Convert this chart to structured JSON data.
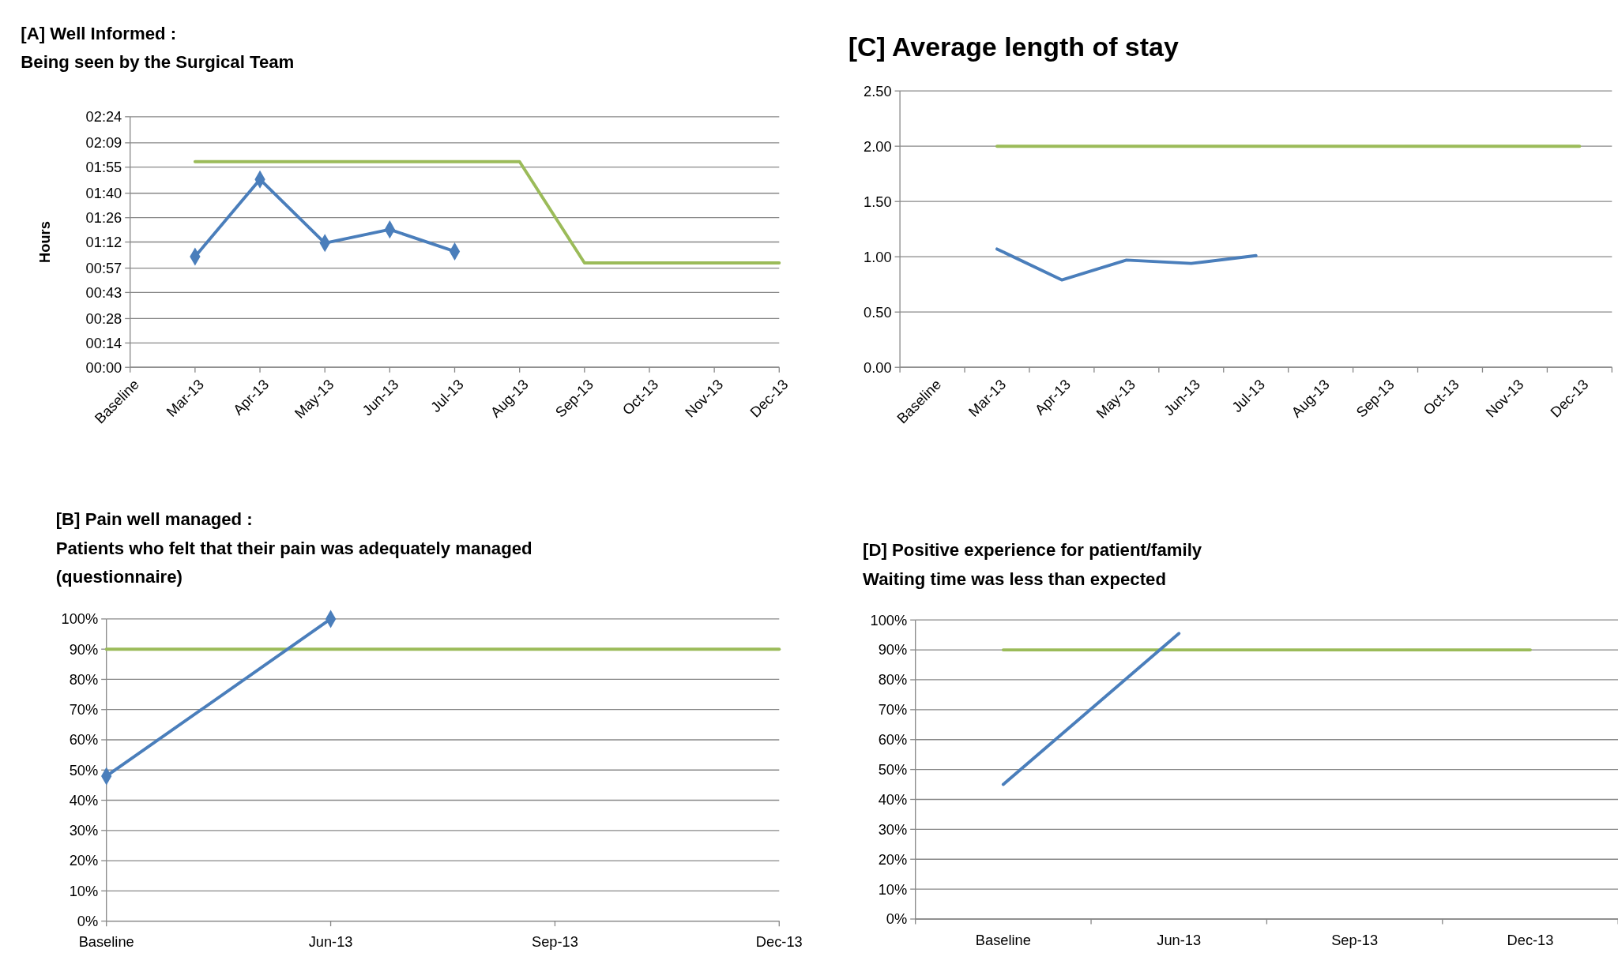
{
  "chart_data": [
    {
      "type": "line",
      "title": "[A] Well Informed :",
      "subtitle": "Being seen by the Surgical Team",
      "ylabel": "Hours",
      "categories": [
        "Baseline",
        "Mar-13",
        "Apr-13",
        "May-13",
        "Jun-13",
        "Jul-13",
        "Aug-13",
        "Sep-13",
        "Oct-13",
        "Nov-13",
        "Dec-13"
      ],
      "ylim": [
        0,
        2.4
      ],
      "yticks": [
        {
          "value": 0,
          "label": "00:00"
        },
        {
          "value": 0.233,
          "label": "00:14"
        },
        {
          "value": 0.467,
          "label": "00:28"
        },
        {
          "value": 0.717,
          "label": "00:43"
        },
        {
          "value": 0.95,
          "label": "00:57"
        },
        {
          "value": 1.2,
          "label": "01:12"
        },
        {
          "value": 1.433,
          "label": "01:26"
        },
        {
          "value": 1.667,
          "label": "01:40"
        },
        {
          "value": 1.917,
          "label": "01:55"
        },
        {
          "value": 2.15,
          "label": "02:09"
        },
        {
          "value": 2.4,
          "label": "02:24"
        }
      ],
      "grid": "y",
      "series": [
        {
          "color": "#9bbb59",
          "marker": "none",
          "values": [
            null,
            1.97,
            1.97,
            1.97,
            1.97,
            1.97,
            1.97,
            1.0,
            1.0,
            1.0,
            1.0
          ]
        },
        {
          "color": "#4a7ebb",
          "marker": "diamond",
          "values": [
            null,
            1.06,
            1.8,
            1.19,
            1.32,
            1.11,
            null,
            null,
            null,
            null,
            null
          ]
        }
      ]
    },
    {
      "type": "line",
      "title": "[C] Average length of stay",
      "categories": [
        "Baseline",
        "Mar-13",
        "Apr-13",
        "May-13",
        "Jun-13",
        "Jul-13",
        "Aug-13",
        "Sep-13",
        "Oct-13",
        "Nov-13",
        "Dec-13"
      ],
      "ylim": [
        0,
        2.5
      ],
      "yticks": [
        {
          "value": 0,
          "label": "0.00"
        },
        {
          "value": 0.5,
          "label": "0.50"
        },
        {
          "value": 1,
          "label": "1.00"
        },
        {
          "value": 1.5,
          "label": "1.50"
        },
        {
          "value": 2,
          "label": "2.00"
        },
        {
          "value": 2.5,
          "label": "2.50"
        }
      ],
      "grid": "y",
      "series": [
        {
          "color": "#9bbb59",
          "marker": "none",
          "values": [
            null,
            2,
            2,
            2,
            2,
            2,
            2,
            2,
            2,
            2,
            2
          ]
        },
        {
          "color": "#4a7ebb",
          "marker": "none",
          "values": [
            null,
            1.07,
            0.79,
            0.97,
            0.94,
            1.01,
            null,
            null,
            null,
            null,
            null
          ]
        }
      ]
    },
    {
      "type": "line",
      "title": "[B] Pain well managed :",
      "subtitle": "Patients who felt that their pain was adequately managed\n(questionnaire)",
      "categories": [
        "Baseline",
        "Jun-13",
        "Sep-13",
        "Dec-13"
      ],
      "ylim": [
        0,
        100
      ],
      "yticks": [
        {
          "value": 0,
          "label": "0%"
        },
        {
          "value": 10,
          "label": "10%"
        },
        {
          "value": 20,
          "label": "20%"
        },
        {
          "value": 30,
          "label": "30%"
        },
        {
          "value": 40,
          "label": "40%"
        },
        {
          "value": 50,
          "label": "50%"
        },
        {
          "value": 60,
          "label": "60%"
        },
        {
          "value": 70,
          "label": "70%"
        },
        {
          "value": 80,
          "label": "80%"
        },
        {
          "value": 90,
          "label": "90%"
        },
        {
          "value": 100,
          "label": "100%"
        }
      ],
      "grid": "y",
      "series": [
        {
          "color": "#9bbb59",
          "marker": "none",
          "values": [
            90,
            90,
            90,
            90
          ]
        },
        {
          "color": "#4a7ebb",
          "marker": "diamond",
          "values": [
            48,
            100,
            null,
            null
          ]
        }
      ]
    },
    {
      "type": "line",
      "title": "[D] Positive experience for patient/family",
      "subtitle": "Waiting time was less than expected",
      "categories": [
        "Baseline",
        "Jun-13",
        "Sep-13",
        "Dec-13"
      ],
      "ylim": [
        0,
        100
      ],
      "yticks": [
        {
          "value": 0,
          "label": "0%"
        },
        {
          "value": 10,
          "label": "10%"
        },
        {
          "value": 20,
          "label": "20%"
        },
        {
          "value": 30,
          "label": "30%"
        },
        {
          "value": 40,
          "label": "40%"
        },
        {
          "value": 50,
          "label": "50%"
        },
        {
          "value": 60,
          "label": "60%"
        },
        {
          "value": 70,
          "label": "70%"
        },
        {
          "value": 80,
          "label": "80%"
        },
        {
          "value": 90,
          "label": "90%"
        },
        {
          "value": 100,
          "label": "100%"
        }
      ],
      "grid": "y",
      "series": [
        {
          "color": "#9bbb59",
          "marker": "none",
          "values": [
            90,
            90,
            90,
            90
          ]
        },
        {
          "color": "#4a7ebb",
          "marker": "none",
          "values": [
            45,
            95.5,
            null,
            null
          ]
        }
      ]
    }
  ]
}
